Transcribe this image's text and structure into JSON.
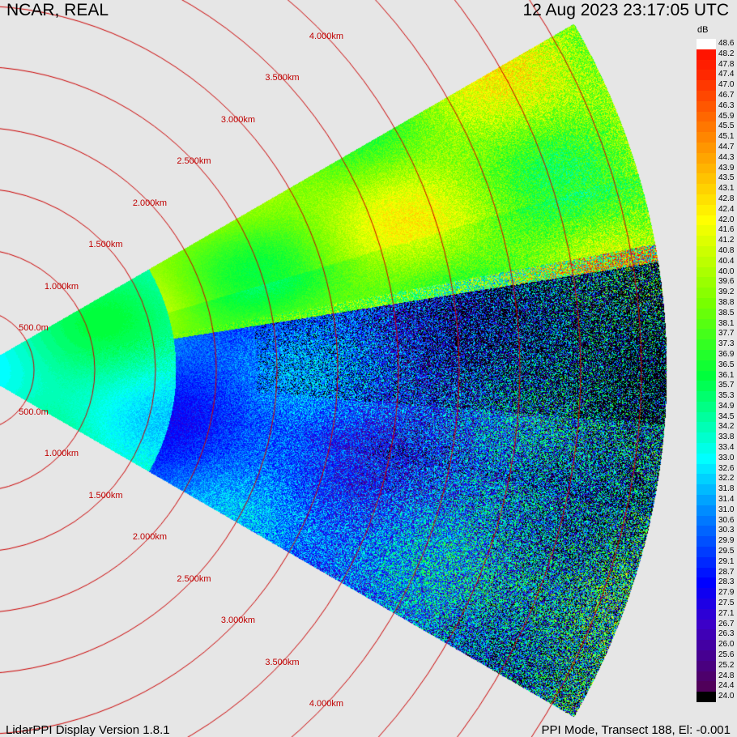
{
  "header": {
    "site": "NCAR, REAL",
    "datetime": "12 Aug 2023  23:17:05 UTC"
  },
  "footer": {
    "version": "LidarPPI Display Version 1.8.1",
    "mode": "PPI Mode, Transect 188, El: -0.001"
  },
  "ring_labels": [
    "500.0m",
    "1.000km",
    "1.500km",
    "2.000km",
    "2.500km",
    "3.000km",
    "3.500km",
    "4.000km"
  ],
  "colorbar": {
    "unit": "dB",
    "labels": [
      "48.6",
      "48.2",
      "47.8",
      "47.4",
      "47.0",
      "46.7",
      "46.3",
      "45.9",
      "45.5",
      "45.1",
      "44.7",
      "44.3",
      "43.9",
      "43.5",
      "43.1",
      "42.8",
      "42.4",
      "42.0",
      "41.6",
      "41.2",
      "40.8",
      "40.4",
      "40.0",
      "39.6",
      "39.2",
      "38.8",
      "38.5",
      "38.1",
      "37.7",
      "37.3",
      "36.9",
      "36.5",
      "36.1",
      "35.7",
      "35.3",
      "34.9",
      "34.5",
      "34.2",
      "33.8",
      "33.4",
      "33.0",
      "32.6",
      "32.2",
      "31.8",
      "31.4",
      "31.0",
      "30.6",
      "30.3",
      "29.9",
      "29.5",
      "29.1",
      "28.7",
      "28.3",
      "27.9",
      "27.5",
      "27.1",
      "26.7",
      "26.3",
      "26.0",
      "25.6",
      "25.2",
      "24.8",
      "24.4",
      "24.0"
    ]
  },
  "colors": {
    "ring": "#cc0000",
    "background": "#e6e6e6"
  }
}
